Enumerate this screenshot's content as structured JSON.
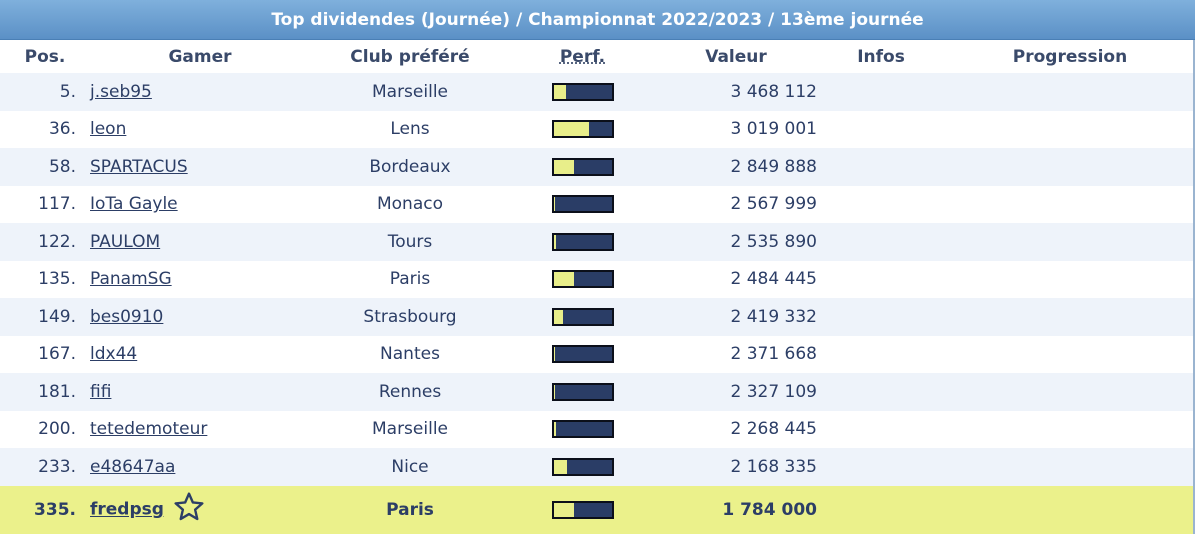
{
  "title": "Top dividendes (Journée) / Championnat 2022/2023 / 13ème journée",
  "columns": {
    "pos": "Pos.",
    "gamer": "Gamer",
    "club": "Club préféré",
    "perf": "Perf.",
    "valeur": "Valeur",
    "infos": "Infos",
    "progression": "Progression"
  },
  "rows": [
    {
      "pos": "5.",
      "gamer": "j.seb95",
      "club": "Marseille",
      "perf": 0.22,
      "valeur": "3 468 112"
    },
    {
      "pos": "36.",
      "gamer": "leon",
      "club": "Lens",
      "perf": 0.62,
      "valeur": "3 019 001"
    },
    {
      "pos": "58.",
      "gamer": "SPARTACUS",
      "club": "Bordeaux",
      "perf": 0.36,
      "valeur": "2 849 888"
    },
    {
      "pos": "117.",
      "gamer": "IoTa Gayle",
      "club": "Monaco",
      "perf": 0.03,
      "valeur": "2 567 999"
    },
    {
      "pos": "122.",
      "gamer": "PAULOM",
      "club": "Tours",
      "perf": 0.05,
      "valeur": "2 535 890"
    },
    {
      "pos": "135.",
      "gamer": "PanamSG",
      "club": "Paris",
      "perf": 0.36,
      "valeur": "2 484 445"
    },
    {
      "pos": "149.",
      "gamer": "bes0910",
      "club": "Strasbourg",
      "perf": 0.17,
      "valeur": "2 419 332"
    },
    {
      "pos": "167.",
      "gamer": "ldx44",
      "club": "Nantes",
      "perf": 0.02,
      "valeur": "2 371 668"
    },
    {
      "pos": "181.",
      "gamer": "fifi",
      "club": "Rennes",
      "perf": 0.03,
      "valeur": "2 327 109"
    },
    {
      "pos": "200.",
      "gamer": "tetedemoteur",
      "club": "Marseille",
      "perf": 0.05,
      "valeur": "2 268 445"
    },
    {
      "pos": "233.",
      "gamer": "e48647aa",
      "club": "Nice",
      "perf": 0.24,
      "valeur": "2 168 335"
    }
  ],
  "me": {
    "pos": "335.",
    "gamer": "fredpsg",
    "club": "Paris",
    "perf": 0.36,
    "valeur": "1 784 000",
    "icon": "star-icon"
  },
  "colors": {
    "bar_fill": "#e8ee8a",
    "bar_bg": "#2a3d66",
    "highlight": "#ebf18b",
    "title_bar": "#6a9fd2"
  }
}
